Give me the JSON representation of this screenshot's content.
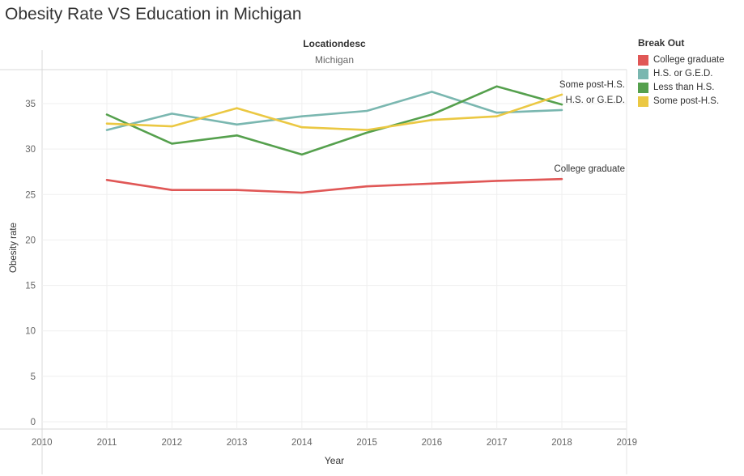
{
  "title": "Obesity Rate VS Education in Michigan",
  "header": {
    "field_label": "Locationdesc",
    "field_value": "Michigan"
  },
  "legend": {
    "title": "Break Out",
    "items": [
      {
        "label": "College graduate",
        "color": "#e05756"
      },
      {
        "label": "H.S. or G.E.D.",
        "color": "#7ab7b0"
      },
      {
        "label": "Less than H.S.",
        "color": "#55a04d"
      },
      {
        "label": "Some post-H.S.",
        "color": "#ebc843"
      }
    ]
  },
  "chart_data": {
    "type": "line",
    "title": "Obesity Rate VS Education in Michigan",
    "xlabel": "Year",
    "ylabel": "Obesity rate",
    "xlim": [
      2010,
      2019
    ],
    "ylim": [
      0,
      38
    ],
    "x_ticks": [
      2010,
      2011,
      2012,
      2013,
      2014,
      2015,
      2016,
      2017,
      2018,
      2019
    ],
    "y_ticks": [
      0,
      5,
      10,
      15,
      20,
      25,
      30,
      35
    ],
    "x": [
      2011,
      2012,
      2013,
      2014,
      2015,
      2016,
      2017,
      2018
    ],
    "grid": true,
    "legend_position": "right",
    "series": [
      {
        "name": "College graduate",
        "color": "#e05756",
        "values": [
          26.6,
          25.5,
          25.5,
          25.2,
          25.9,
          26.2,
          26.5,
          26.7
        ],
        "end_label": "College graduate"
      },
      {
        "name": "H.S. or G.E.D.",
        "color": "#7ab7b0",
        "values": [
          32.1,
          33.9,
          32.7,
          33.6,
          34.2,
          36.3,
          34.0,
          34.3
        ],
        "end_label": "H.S. or G.E.D."
      },
      {
        "name": "Less than H.S.",
        "color": "#55a04d",
        "values": [
          33.8,
          30.6,
          31.5,
          29.4,
          31.8,
          33.8,
          36.9,
          34.9
        ],
        "end_label": ""
      },
      {
        "name": "Some post-H.S.",
        "color": "#ebc843",
        "values": [
          32.8,
          32.5,
          34.5,
          32.4,
          32.1,
          33.2,
          33.6,
          36.0
        ],
        "end_label": "Some post-H.S."
      }
    ]
  }
}
